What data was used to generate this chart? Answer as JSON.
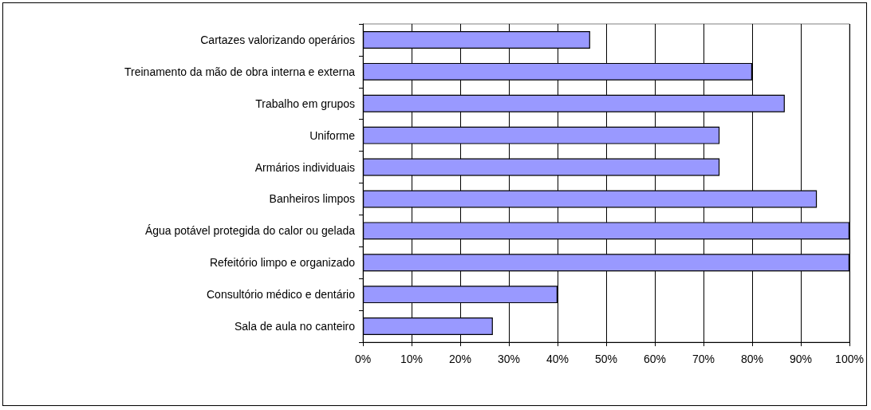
{
  "chart_data": {
    "type": "bar",
    "orientation": "horizontal",
    "categories": [
      "Cartazes valorizando operários",
      "Treinamento da mão de obra interna e externa",
      "Trabalho em grupos",
      "Uniforme",
      "Armários individuais",
      "Banheiros limpos",
      "Água potável protegida do calor ou gelada",
      "Refeitório limpo e organizado",
      "Consultório médico e dentário",
      "Sala de aula no canteiro"
    ],
    "values": [
      46.7,
      80,
      86.7,
      73.3,
      73.3,
      93.3,
      100,
      100,
      40,
      26.7
    ],
    "color": "#9999ff",
    "xlim": [
      0,
      100
    ],
    "xticks": [
      {
        "value": 0,
        "label": "0%"
      },
      {
        "value": 10,
        "label": "10%"
      },
      {
        "value": 20,
        "label": "20%"
      },
      {
        "value": 30,
        "label": "30%"
      },
      {
        "value": 40,
        "label": "40%"
      },
      {
        "value": 50,
        "label": "50%"
      },
      {
        "value": 60,
        "label": "60%"
      },
      {
        "value": 70,
        "label": "70%"
      },
      {
        "value": 80,
        "label": "80%"
      },
      {
        "value": 90,
        "label": "90%"
      },
      {
        "value": 100,
        "label": "100%"
      }
    ],
    "grid": "x"
  }
}
